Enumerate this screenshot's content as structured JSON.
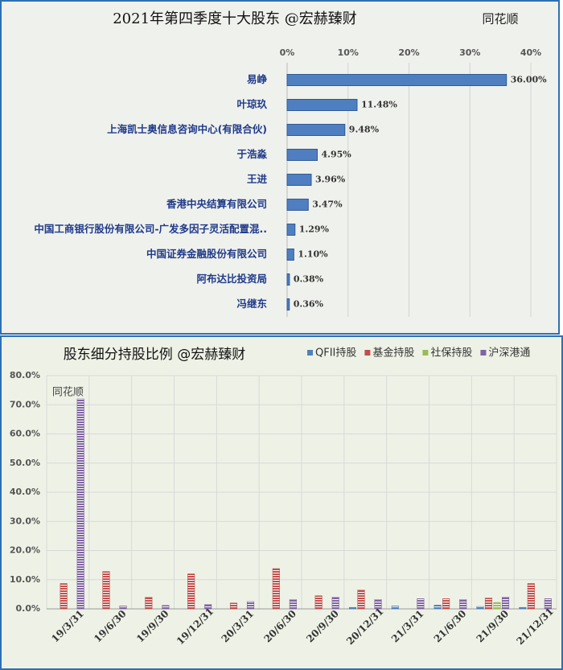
{
  "chart_data": [
    {
      "type": "hbar",
      "title": "2021年第四季度十大股东 @宏赫臻财",
      "annotation": "同花顺",
      "categories": [
        "易峥",
        "叶琼玖",
        "上海凯士奥信息咨询中心(有限合伙)",
        "于浩淼",
        "王进",
        "香港中央结算有限公司",
        "中国工商银行股份有限公司-广发多因子灵活配置混..",
        "中国证券金融股份有限公司",
        "阿布达比投资局",
        "冯继东"
      ],
      "values": [
        36.0,
        11.48,
        9.48,
        4.95,
        3.96,
        3.47,
        1.29,
        1.1,
        0.38,
        0.36
      ],
      "value_labels": [
        "36.00%",
        "11.48%",
        "9.48%",
        "4.95%",
        "3.96%",
        "3.47%",
        "1.29%",
        "1.10%",
        "0.38%",
        "0.36%"
      ],
      "color": "#4f7fc0",
      "xlim": [
        0,
        40
      ],
      "xticks": [
        {
          "value": 0,
          "label": "0%"
        },
        {
          "value": 10,
          "label": "10%"
        },
        {
          "value": 20,
          "label": "20%"
        },
        {
          "value": 30,
          "label": "30%"
        },
        {
          "value": 40,
          "label": "40%"
        }
      ],
      "grid": true
    },
    {
      "type": "bar",
      "title": "股东细分持股比例 @宏赫臻财",
      "annotation": "同花顺",
      "categories": [
        "19/3/31",
        "19/6/30",
        "19/9/30",
        "19/12/31",
        "20/3/31",
        "20/6/30",
        "20/9/30",
        "20/12/31",
        "21/3/31",
        "21/6/30",
        "21/9/30",
        "21/12/31"
      ],
      "series": [
        {
          "name": "QFII持股",
          "color": "#4f81bd",
          "values": [
            0,
            0,
            0,
            0,
            0,
            0,
            0,
            0.5,
            1.0,
            1.3,
            0.8,
            0.5
          ]
        },
        {
          "name": "基金持股",
          "color": "#c0504d",
          "values": [
            8.7,
            12.8,
            4.0,
            12.0,
            2.0,
            13.8,
            4.5,
            6.5,
            0,
            3.5,
            3.7,
            8.7
          ]
        },
        {
          "name": "社保持股",
          "color": "#9bbb59",
          "values": [
            0,
            0,
            0,
            0,
            0,
            0,
            0,
            0,
            0,
            0,
            2.2,
            0
          ]
        },
        {
          "name": "沪深港通",
          "color": "#8064a2",
          "values": [
            72.0,
            1.0,
            1.2,
            1.5,
            2.5,
            3.2,
            4.0,
            3.2,
            3.5,
            3.2,
            4.0,
            3.5
          ]
        }
      ],
      "ylim": [
        0,
        80
      ],
      "yticks": [
        {
          "value": 0,
          "label": "0.0%"
        },
        {
          "value": 10,
          "label": "10.0%"
        },
        {
          "value": 20,
          "label": "20.0%"
        },
        {
          "value": 30,
          "label": "30.0%"
        },
        {
          "value": 40,
          "label": "40.0%"
        },
        {
          "value": 50,
          "label": "50.0%"
        },
        {
          "value": 60,
          "label": "60.0%"
        },
        {
          "value": 70,
          "label": "70.0%"
        },
        {
          "value": 80,
          "label": "80.0%"
        }
      ],
      "grid": true,
      "legend": "top-right"
    }
  ]
}
